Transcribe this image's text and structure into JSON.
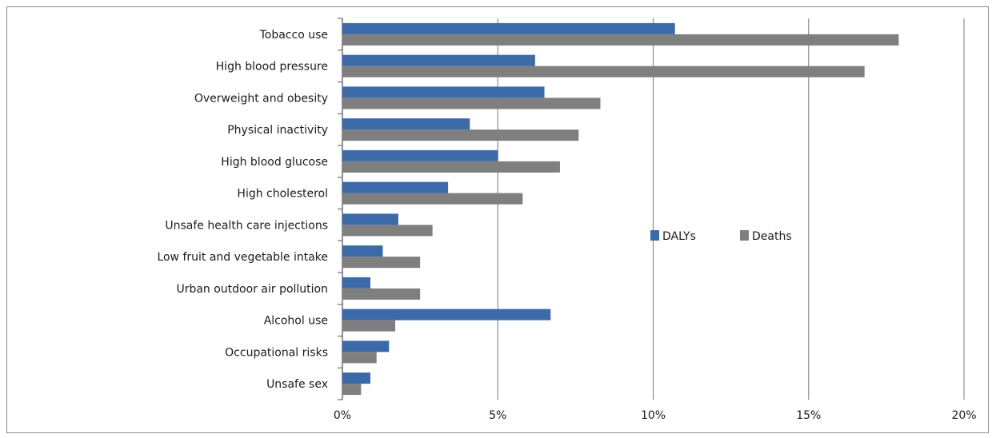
{
  "chart_data": {
    "type": "bar",
    "orientation": "horizontal",
    "categories": [
      "Tobacco use",
      "High blood pressure",
      "Overweight and obesity",
      "Physical inactivity",
      "High blood glucose",
      "High cholesterol",
      "Unsafe health care injections",
      "Low fruit and vegetable  intake",
      "Urban outdoor air pollution",
      "Alcohol use",
      "Occupational risks",
      "Unsafe sex"
    ],
    "series": [
      {
        "name": "DALYs",
        "color": "#3c6aa8",
        "values": [
          10.7,
          6.2,
          6.5,
          4.1,
          5.0,
          3.4,
          1.8,
          1.3,
          0.9,
          6.7,
          1.5,
          0.9
        ]
      },
      {
        "name": "Deaths",
        "color": "#7f7f7f",
        "values": [
          17.9,
          16.8,
          8.3,
          7.6,
          7.0,
          5.8,
          2.9,
          2.5,
          2.5,
          1.7,
          1.1,
          0.6
        ]
      }
    ],
    "xlim": [
      0,
      20
    ],
    "xticks": [
      0,
      5,
      10,
      15,
      20
    ],
    "xtick_labels": [
      "0%",
      "5%",
      "10%",
      "15%",
      "20%"
    ],
    "grid": "vertical",
    "legend": "center-right",
    "title": "",
    "xlabel": "",
    "ylabel": ""
  }
}
